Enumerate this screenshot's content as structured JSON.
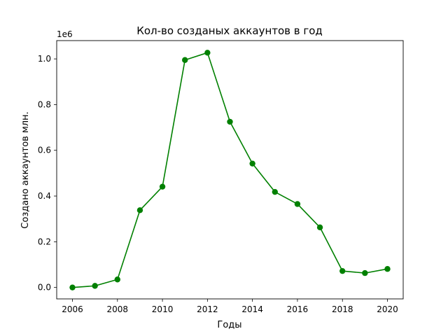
{
  "chart_data": {
    "type": "line",
    "title": "Кол-во созданых аккаунтов в год",
    "xlabel": "Годы",
    "ylabel": "Создано аккаунтов млн.",
    "offset_text": "1e6",
    "x": [
      2006,
      2007,
      2008,
      2009,
      2010,
      2011,
      2012,
      2013,
      2014,
      2015,
      2016,
      2017,
      2018,
      2019,
      2020
    ],
    "series": [
      {
        "color": "#008000",
        "marker": "circle",
        "values": [
          0,
          7000,
          35000,
          338000,
          441000,
          995000,
          1027000,
          725000,
          542000,
          418000,
          365000,
          263000,
          72000,
          63000,
          81000
        ]
      }
    ],
    "xlim": [
      2005.3,
      2020.7
    ],
    "ylim": [
      -50000,
      1080000
    ],
    "x_ticks": [
      2006,
      2008,
      2010,
      2012,
      2014,
      2016,
      2018,
      2020
    ],
    "x_tick_labels": [
      "2006",
      "2008",
      "2010",
      "2012",
      "2014",
      "2016",
      "2018",
      "2020"
    ],
    "y_ticks": [
      0,
      200000,
      400000,
      600000,
      800000,
      1000000
    ],
    "y_tick_labels": [
      "0.0",
      "0.2",
      "0.4",
      "0.6",
      "0.8",
      "1.0"
    ],
    "grid": false,
    "legend": false
  }
}
